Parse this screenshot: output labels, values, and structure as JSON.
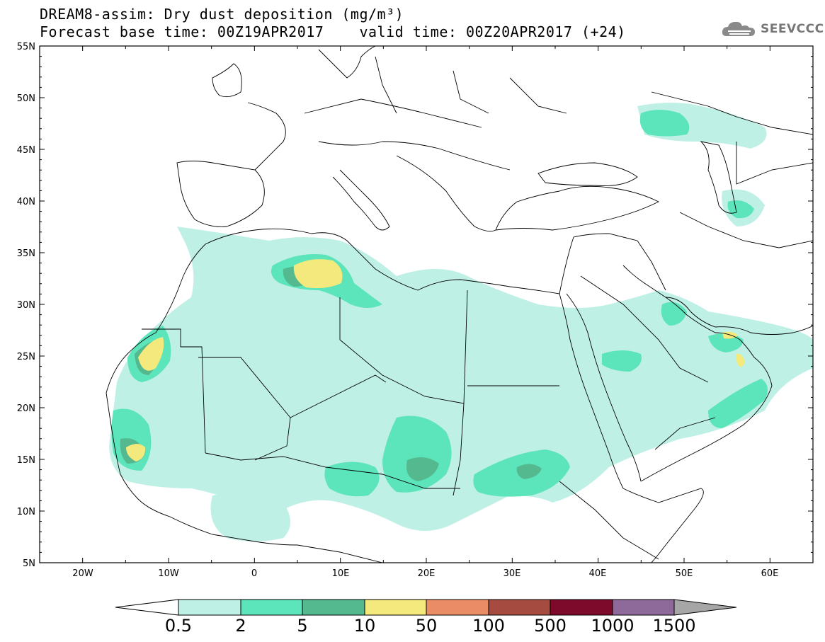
{
  "header": {
    "title_line1": "DREAM8-assim: Dry dust deposition (mg/m³)",
    "title_line2": "Forecast base time: 00Z19APR2017    valid time: 00Z20APR2017 (+24)",
    "logo_text": "SEEVCCC"
  },
  "map": {
    "lat_labels": [
      "55N",
      "50N",
      "45N",
      "40N",
      "35N",
      "30N",
      "25N",
      "20N",
      "15N",
      "10N",
      "5N"
    ],
    "lon_labels": [
      "20W",
      "10W",
      "0",
      "10E",
      "20E",
      "30E",
      "40E",
      "50E",
      "60E"
    ],
    "lon_range": [
      -25,
      65
    ],
    "lat_range": [
      5,
      55
    ]
  },
  "colorbar": {
    "labels": [
      "0.5",
      "2",
      "5",
      "10",
      "50",
      "100",
      "500",
      "1000",
      "1500"
    ],
    "colors": [
      "#bff0e6",
      "#5ce4bb",
      "#55b990",
      "#f4e97c",
      "#ea8d67",
      "#a54b3f",
      "#7d0a2a",
      "#8e6a9b",
      "#a6a6a6"
    ]
  }
}
